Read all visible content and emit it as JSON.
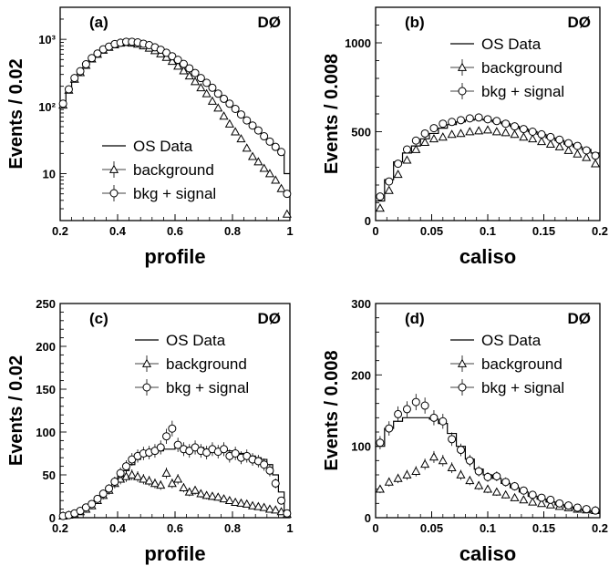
{
  "figure": {
    "experiment_label": "DØ"
  },
  "legend_labels": {
    "data": "OS Data",
    "background": "background",
    "bkg_signal": "bkg + signal"
  },
  "chart_data": [
    {
      "panel": "(a)",
      "type": "line",
      "xlabel": "profile",
      "ylabel": "Events / 0.02",
      "xlim": [
        0.2,
        1.0
      ],
      "ylim": [
        2,
        3000
      ],
      "yscale": "log",
      "xticks": [
        "0.2",
        "0.4",
        "0.6",
        "0.8",
        "1"
      ],
      "yticks": [
        {
          "v": 10,
          "label": "10"
        },
        {
          "v": 100,
          "label": "10²"
        },
        {
          "v": 1000,
          "label": "10³"
        }
      ],
      "legend_position": "bottom-left",
      "grid": false,
      "bin_start": 0.2,
      "bin_width": 0.02,
      "series": [
        {
          "name": "OS Data",
          "style": "histogram",
          "values": [
            110,
            175,
            260,
            330,
            420,
            520,
            610,
            700,
            770,
            840,
            880,
            910,
            920,
            900,
            860,
            820,
            760,
            700,
            630,
            560,
            500,
            430,
            370,
            320,
            270,
            230,
            195,
            160,
            135,
            115,
            97,
            80,
            66,
            55,
            46,
            38,
            31,
            25,
            20,
            10
          ]
        },
        {
          "name": "background",
          "style": "triangles",
          "values": [
            105,
            175,
            255,
            320,
            410,
            510,
            600,
            690,
            760,
            830,
            880,
            900,
            880,
            850,
            800,
            740,
            680,
            610,
            540,
            470,
            400,
            340,
            285,
            235,
            190,
            155,
            120,
            95,
            72,
            55,
            42,
            33,
            24,
            18,
            15,
            12,
            10,
            8,
            6,
            2.5
          ]
        },
        {
          "name": "bkg + signal",
          "style": "circles",
          "values": [
            110,
            180,
            265,
            335,
            425,
            525,
            615,
            710,
            780,
            850,
            890,
            920,
            920,
            900,
            860,
            820,
            760,
            700,
            630,
            560,
            495,
            430,
            370,
            315,
            265,
            225,
            190,
            155,
            130,
            110,
            92,
            76,
            62,
            52,
            44,
            36,
            30,
            25,
            21,
            5
          ]
        }
      ]
    },
    {
      "panel": "(b)",
      "type": "line",
      "xlabel": "caliso",
      "ylabel": "Events / 0.008",
      "xlim": [
        0,
        0.2
      ],
      "ylim": [
        0,
        1200
      ],
      "yscale": "linear",
      "xticks": [
        "0",
        "0.05",
        "0.1",
        "0.15",
        "0.2"
      ],
      "yticks": [
        {
          "v": 0,
          "label": "0"
        },
        {
          "v": 500,
          "label": "500"
        },
        {
          "v": 1000,
          "label": "1000"
        }
      ],
      "legend_position": "top-right",
      "grid": false,
      "bin_start": 0,
      "bin_width": 0.008,
      "series": [
        {
          "name": "OS Data",
          "style": "histogram",
          "values": [
            110,
            230,
            330,
            380,
            420,
            460,
            490,
            520,
            540,
            555,
            565,
            570,
            565,
            555,
            545,
            530,
            515,
            500,
            485,
            465,
            450,
            430,
            415,
            400,
            380
          ]
        },
        {
          "name": "background",
          "style": "triangles",
          "values": [
            70,
            170,
            260,
            340,
            400,
            440,
            460,
            470,
            485,
            490,
            500,
            505,
            510,
            500,
            495,
            485,
            470,
            460,
            445,
            430,
            415,
            395,
            375,
            355,
            320
          ]
        },
        {
          "name": "bkg + signal",
          "style": "circles",
          "values": [
            135,
            220,
            320,
            400,
            450,
            490,
            520,
            545,
            555,
            565,
            575,
            580,
            570,
            560,
            545,
            530,
            515,
            500,
            485,
            470,
            455,
            435,
            420,
            395,
            365
          ]
        }
      ]
    },
    {
      "panel": "(c)",
      "type": "line",
      "xlabel": "profile",
      "ylabel": "Events / 0.02",
      "xlim": [
        0.2,
        1.0
      ],
      "ylim": [
        0,
        250
      ],
      "yscale": "linear",
      "xticks": [
        "0.2",
        "0.4",
        "0.6",
        "0.8",
        "1"
      ],
      "yticks": [
        {
          "v": 0,
          "label": "0"
        },
        {
          "v": 50,
          "label": "50"
        },
        {
          "v": 100,
          "label": "100"
        },
        {
          "v": 150,
          "label": "150"
        },
        {
          "v": 200,
          "label": "200"
        },
        {
          "v": 250,
          "label": "250"
        }
      ],
      "legend_position": "top-right",
      "grid": false,
      "bin_start": 0.2,
      "bin_width": 0.02,
      "series": [
        {
          "name": "OS Data",
          "style": "histogram",
          "values": [
            2,
            3,
            5,
            8,
            12,
            16,
            20,
            26,
            32,
            40,
            48,
            55,
            62,
            68,
            72,
            75,
            76,
            78,
            80,
            80,
            82,
            82,
            82,
            82,
            82,
            80,
            80,
            78,
            78,
            78,
            75,
            75,
            74,
            72,
            70,
            68,
            62,
            50,
            30,
            5
          ]
        },
        {
          "name": "background",
          "style": "triangles",
          "values": [
            2,
            3,
            4,
            7,
            10,
            14,
            20,
            26,
            32,
            40,
            45,
            48,
            50,
            48,
            45,
            43,
            40,
            38,
            52,
            40,
            45,
            35,
            30,
            32,
            28,
            26,
            25,
            24,
            22,
            20,
            18,
            17,
            16,
            14,
            13,
            12,
            10,
            9,
            7,
            4
          ]
        },
        {
          "name": "bkg + signal",
          "style": "circles",
          "values": [
            2,
            3,
            5,
            8,
            12,
            16,
            22,
            28,
            34,
            42,
            52,
            60,
            68,
            72,
            75,
            76,
            78,
            82,
            95,
            104,
            85,
            80,
            78,
            82,
            78,
            76,
            80,
            77,
            80,
            72,
            75,
            70,
            72,
            68,
            66,
            62,
            55,
            40,
            20,
            5
          ]
        }
      ]
    },
    {
      "panel": "(d)",
      "type": "line",
      "xlabel": "caliso",
      "ylabel": "Events / 0.008",
      "xlim": [
        0,
        0.2
      ],
      "ylim": [
        0,
        300
      ],
      "yscale": "linear",
      "xticks": [
        "0",
        "0.05",
        "0.1",
        "0.15",
        "0.2"
      ],
      "yticks": [
        {
          "v": 0,
          "label": "0"
        },
        {
          "v": 100,
          "label": "100"
        },
        {
          "v": 200,
          "label": "200"
        },
        {
          "v": 300,
          "label": "300"
        }
      ],
      "legend_position": "top-right",
      "grid": false,
      "bin_start": 0,
      "bin_width": 0.008,
      "series": [
        {
          "name": "OS Data",
          "style": "histogram",
          "values": [
            100,
            125,
            135,
            140,
            140,
            140,
            138,
            132,
            118,
            100,
            82,
            68,
            60,
            55,
            48,
            42,
            36,
            30,
            26,
            22,
            18,
            15,
            12,
            10,
            8
          ]
        },
        {
          "name": "background",
          "style": "triangles",
          "values": [
            40,
            50,
            55,
            60,
            65,
            75,
            85,
            80,
            70,
            60,
            52,
            45,
            40,
            36,
            32,
            28,
            25,
            22,
            20,
            18,
            16,
            14,
            12,
            11,
            10
          ]
        },
        {
          "name": "bkg + signal",
          "style": "circles",
          "values": [
            105,
            125,
            145,
            152,
            162,
            157,
            140,
            135,
            110,
            95,
            80,
            65,
            57,
            58,
            50,
            44,
            38,
            32,
            28,
            25,
            20,
            17,
            14,
            12,
            10
          ]
        }
      ]
    }
  ]
}
